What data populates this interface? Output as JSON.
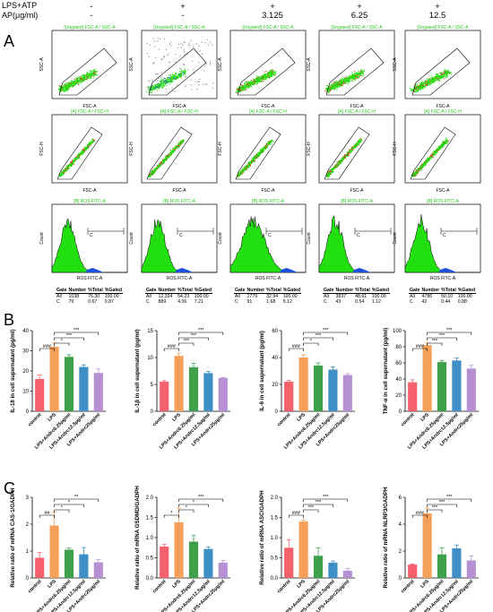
{
  "header": {
    "row1_label": "LPS+ATP",
    "row2_label": "AP(μg/ml)",
    "row1_values": [
      "-",
      "+",
      "+",
      "+",
      "+"
    ],
    "row2_values": [
      "-",
      "-",
      "3.125",
      "6.25",
      "12.5"
    ]
  },
  "panels": {
    "a": "A",
    "b": "B",
    "c": "C"
  },
  "flow": {
    "scatter_titles_top": [
      "[Ungated] FSC-A / SSC-A",
      "[Ungated] FSC-A / SSC-A",
      "[Ungated] FSC-A / SSC-A",
      "[Ungated] FSC-A / SSC-A",
      "[Ungated] FSC-A / SSC-A"
    ],
    "scatter_titles_mid": [
      "[A] FSC-A / FSC-H",
      "[A] FSC-A / FSC-H",
      "[A] FSC-A / FSC-H",
      "[A] FSC-A / FSC-H",
      "[A] FSC-A / FSC-H"
    ],
    "hist_titles": [
      "[B] ROS FITC-A",
      "[B] ROS FITC-A",
      "[B] ROS FITC-A",
      "[B] ROS FITC-A",
      "[B] ROS FITC-A"
    ],
    "ssc_label": "SSC-A",
    "fsc_label": "FSC-A",
    "fsch_label": "FSC-H",
    "count_label": "Count",
    "ros_label": "ROS FITC-A",
    "gate_letter": "C",
    "table_header": [
      "Gate",
      "Number",
      "%Total",
      "%Gated"
    ],
    "tables": [
      [
        [
          "All",
          "1038",
          "76.30",
          "100.00"
        ],
        [
          "C",
          "79",
          "0.67",
          "0.87"
        ]
      ],
      [
        [
          "All",
          "12,324",
          "54.23",
          "100.00"
        ],
        [
          "C",
          "889",
          "4.06",
          "7.21"
        ]
      ],
      [
        [
          "All",
          "1779",
          "32.94",
          "100.00"
        ],
        [
          "C",
          "91",
          "1.68",
          "5.12"
        ]
      ],
      [
        [
          "All",
          "3837",
          "48.61",
          "100.00"
        ],
        [
          "C",
          "43",
          "0.54",
          "1.12"
        ]
      ],
      [
        [
          "All",
          "4786",
          "50.10",
          "100.00"
        ],
        [
          "C",
          "42",
          "0.44",
          "0.88"
        ]
      ]
    ]
  },
  "colors": {
    "control": "#f4606c",
    "lps": "#f5a05a",
    "ap3": "#3fa04a",
    "ap6": "#3d8fc6",
    "ap12": "#b591d3",
    "flow_green": "#22e010",
    "flow_blue": "#1d4fd8",
    "flow_title": "#26c81e"
  },
  "chart_data": [
    {
      "type": "bar",
      "panel": "B",
      "categories": [
        "control",
        "LPS",
        "LPS+Andrc6.25μg/ml",
        "LPS+Andrc12.5μg/ml",
        "LPS+Andrc25μg/ml"
      ],
      "values": [
        16,
        32,
        27,
        22,
        19
      ],
      "errors": [
        2,
        2,
        1,
        1,
        2
      ],
      "ylabel": "IL-18 in cell supernatant (pg/ml)",
      "ylim": [
        0,
        40
      ],
      "yticks": [
        "0",
        "10",
        "20",
        "30",
        "40"
      ],
      "sig": [
        "###",
        "*",
        "***",
        "***"
      ]
    },
    {
      "type": "bar",
      "panel": "B",
      "categories": [
        "control",
        "LPS",
        "LPS+Andrc6.25μg/ml",
        "LPS+Andrc12.5μg/ml",
        "LPS+Andrc25μg/ml"
      ],
      "values": [
        5.5,
        10.3,
        8.2,
        7.1,
        6.2
      ],
      "errors": [
        0.2,
        0.5,
        0.7,
        0.3,
        0.1
      ],
      "ylabel": "IL-1β in cell supernatant (pg/ml)",
      "ylim": [
        0,
        15
      ],
      "yticks": [
        "0",
        "5",
        "10",
        "15"
      ],
      "sig": [
        "###",
        "***",
        "***",
        "***"
      ]
    },
    {
      "type": "bar",
      "panel": "B",
      "categories": [
        "control",
        "LPS",
        "LPS+Andrc6.25μg/ml",
        "LPS+Andrc12.5μg/ml",
        "LPS+Andrc25μg/ml"
      ],
      "values": [
        22,
        40,
        34,
        31,
        27
      ],
      "errors": [
        1,
        2,
        2,
        2,
        1
      ],
      "ylabel": "IL-6 in cell supernatant (pg/ml)",
      "ylim": [
        0,
        60
      ],
      "yticks": [
        "0",
        "20",
        "40",
        "60"
      ],
      "sig": [
        "###",
        "*",
        "***",
        "***"
      ]
    },
    {
      "type": "bar",
      "panel": "B",
      "categories": [
        "control",
        "LPS",
        "LPS+Andrc6.25μg/ml",
        "LPS+Andrc12.5μg/ml",
        "LPS+Andrc25μg/ml"
      ],
      "values": [
        36,
        82,
        61,
        63,
        53
      ],
      "errors": [
        3,
        3,
        2,
        3,
        4
      ],
      "ylabel": "TNF-α in cell supernatant (pg/ml)",
      "ylim": [
        0,
        100
      ],
      "yticks": [
        "0",
        "20",
        "40",
        "60",
        "80",
        "100"
      ],
      "sig": [
        "###",
        "***",
        "***",
        "***"
      ]
    },
    {
      "type": "bar",
      "panel": "C",
      "categories": [
        "control",
        "LPS",
        "LPS+Andrc6.25μg/ml",
        "LPS+Andrc12.5μg/ml",
        "LPS+Andrc25μg/ml"
      ],
      "values": [
        0.75,
        1.95,
        1.05,
        0.88,
        0.58
      ],
      "errors": [
        0.2,
        0.5,
        0.06,
        0.25,
        0.1
      ],
      "ylabel": "Relative ratio of mRNA CAS-1/GADPH",
      "ylim": [
        0,
        3
      ],
      "yticks": [
        "0",
        "1",
        "2",
        "3"
      ],
      "sig": [
        "##",
        "*",
        "*",
        "**"
      ]
    },
    {
      "type": "bar",
      "panel": "C",
      "categories": [
        "control",
        "LPS",
        "LPS+Andrc6.25μg/ml",
        "LPS+Andrc12.5μg/ml",
        "LPS+Andrc25μg/ml"
      ],
      "values": [
        0.78,
        1.38,
        0.9,
        0.72,
        0.38
      ],
      "errors": [
        0.05,
        0.35,
        0.15,
        0.05,
        0.05
      ],
      "ylabel": "Relative ratio of mRNA GSDMD/GADPH",
      "ylim": [
        0,
        2.0
      ],
      "yticks": [
        "0.0",
        "0.5",
        "1.0",
        "1.5",
        "2.0"
      ],
      "sig": [
        "*",
        "*",
        "*",
        "***"
      ]
    },
    {
      "type": "bar",
      "panel": "C",
      "categories": [
        "control",
        "LPS",
        "LPS+Andrc6.25μg/ml",
        "LPS+Andrc12.5μg/ml",
        "LPS+Andrc25μg/ml"
      ],
      "values": [
        0.75,
        1.4,
        0.55,
        0.38,
        0.18
      ],
      "errors": [
        0.2,
        0.04,
        0.2,
        0.04,
        0.05
      ],
      "ylabel": "Relative ratio of mRNA ASC/GADPH",
      "ylim": [
        0,
        2.0
      ],
      "yticks": [
        "0.0",
        "0.5",
        "1.0",
        "1.5",
        "2.0"
      ],
      "sig": [
        "###",
        "***",
        "***",
        "***"
      ]
    },
    {
      "type": "bar",
      "panel": "C",
      "categories": [
        "control",
        "LPS",
        "LPS+Andrc6.25μg/ml",
        "LPS+Andrc12.5μg/ml",
        "LPS+Andrc25μg/ml"
      ],
      "values": [
        1.0,
        4.8,
        1.75,
        2.2,
        1.3
      ],
      "errors": [
        0.05,
        0.4,
        0.5,
        0.25,
        0.35
      ],
      "ylabel": "Relative ratio of mRNA NLRP3/GADPH",
      "ylim": [
        0,
        6
      ],
      "yticks": [
        "0",
        "2",
        "4",
        "6"
      ],
      "sig": [
        "###",
        "***",
        "***",
        "***"
      ]
    }
  ]
}
